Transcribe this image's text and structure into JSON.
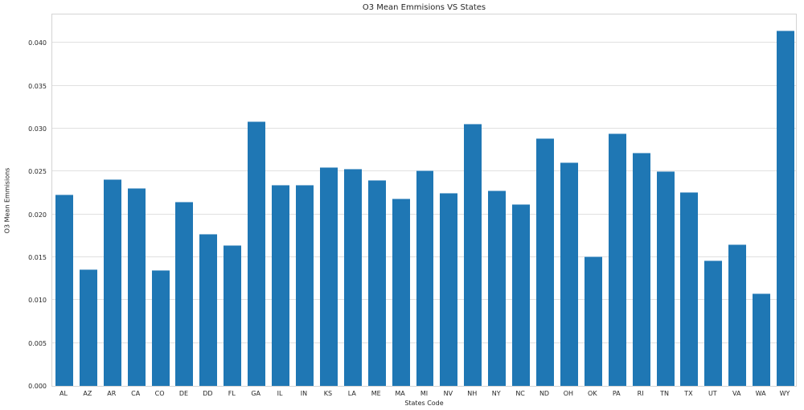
{
  "figure": {
    "title": "O3 Mean Emmisions VS States",
    "xlabel": "States Code",
    "ylabel": "O3 Mean Emmisions"
  },
  "chart_data": {
    "type": "bar",
    "title": "O3 Mean Emmisions VS States",
    "xlabel": "States Code",
    "ylabel": "O3 Mean Emmisions",
    "categories": [
      "AL",
      "AZ",
      "AR",
      "CA",
      "CO",
      "DE",
      "DD",
      "FL",
      "GA",
      "IL",
      "IN",
      "KS",
      "LA",
      "ME",
      "MA",
      "MI",
      "NV",
      "NH",
      "NY",
      "NC",
      "ND",
      "OH",
      "OK",
      "PA",
      "RI",
      "TN",
      "TX",
      "UT",
      "VA",
      "WA",
      "WY"
    ],
    "values": [
      0.0223,
      0.0136,
      0.0241,
      0.0231,
      0.0135,
      0.0215,
      0.0177,
      0.0164,
      0.0308,
      0.0234,
      0.0234,
      0.0255,
      0.0253,
      0.024,
      0.0218,
      0.0251,
      0.0225,
      0.0306,
      0.0228,
      0.0212,
      0.0289,
      0.0261,
      0.0151,
      0.0294,
      0.0272,
      0.025,
      0.0226,
      0.0146,
      0.0165,
      0.0108,
      0.0414
    ],
    "ylim": [
      0,
      0.0435
    ],
    "yticks": [
      0.0,
      0.005,
      0.01,
      0.015,
      0.02,
      0.025,
      0.03,
      0.035,
      0.04
    ],
    "ytick_labels": [
      "0.000",
      "0.005",
      "0.010",
      "0.015",
      "0.020",
      "0.025",
      "0.030",
      "0.035",
      "0.040"
    ],
    "grid": true,
    "legend_position": "none",
    "colors": {
      "bar": "#1f77b4",
      "grid": "#e0e0e0",
      "spine": "#d4d4d4",
      "text": "#262626",
      "background": "#ffffff"
    }
  }
}
